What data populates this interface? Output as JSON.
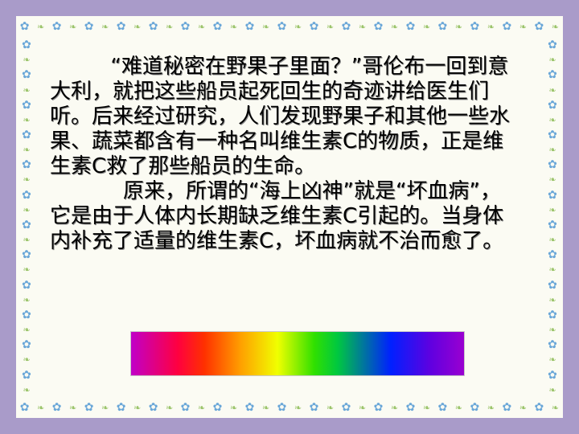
{
  "document": {
    "paragraph1": "“难道秘密在野果子里面？”哥伦布一回到意大利，就把这些船员起死回生的奇迹讲给医生们听。后来经过研究，人们发现野果子和其他一些水果、蔬菜都含有一种名叫维生素C的物质，正是维生素C救了那些船员的生命。",
    "paragraph2": "原来，所谓的“海上凶神”就是“坏血病”，它是由于人体内长期缺乏维生素C引起的。当身体内补充了适量的维生素C，坏血病就不治而愈了。"
  },
  "colors": {
    "background": "#a99bc9",
    "card": "#fbfbf3",
    "flower": "#6aa7d8",
    "leaf": "#9bc46a"
  },
  "decorations": {
    "border_icon": "flower-icon",
    "spectrum_bar": "color-spectrum"
  }
}
